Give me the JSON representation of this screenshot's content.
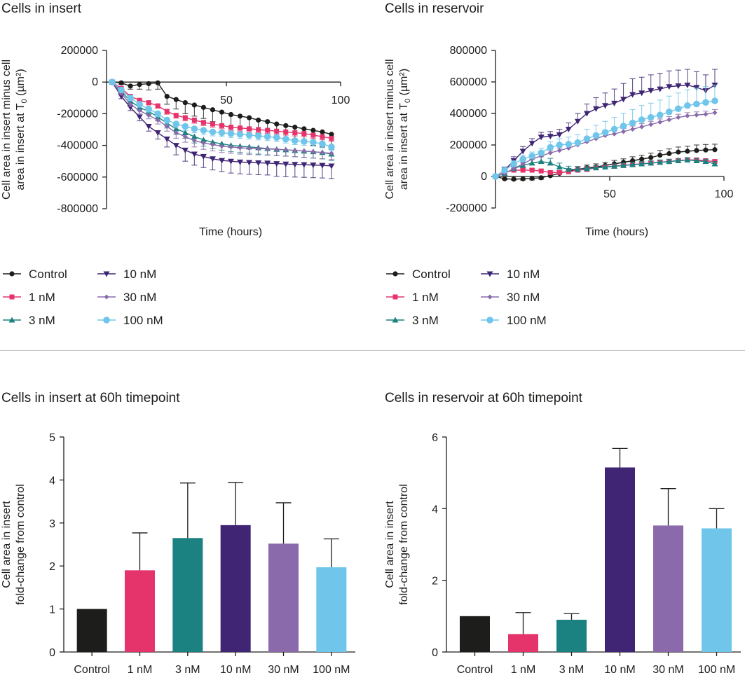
{
  "colors": {
    "Control": "#1d1d1b",
    "1 nM": "#e5336b",
    "3 nM": "#1b8281",
    "10 nM": "#3f2574",
    "30 nM": "#8a6aaa",
    "100 nM": "#6fc6ea",
    "axis": "#1d1d1b",
    "divider": "#c8c8c8"
  },
  "legend": [
    "Control",
    "1 nM",
    "3 nM",
    "10 nM",
    "30 nM",
    "100 nM"
  ],
  "chart_data": [
    {
      "id": "insert-line",
      "type": "line",
      "title": "Cells in insert",
      "xlabel": "Time (hours)",
      "ylabel_lines": [
        "Cell area in insert minus cell",
        "area in insert at T",
        "0",
        " (µm²)"
      ],
      "xlim": [
        0,
        100
      ],
      "ylim": [
        -800000,
        200000
      ],
      "xticks": [
        "50",
        "100"
      ],
      "xtick_values": [
        50,
        100
      ],
      "yticks": [
        "200000",
        "0",
        "-200000",
        "-400000",
        "-600000",
        "-800000"
      ],
      "ytick_values": [
        200000,
        0,
        -200000,
        -400000,
        -600000,
        -800000
      ],
      "x": [
        0,
        4,
        8,
        12,
        16,
        20,
        24,
        28,
        32,
        36,
        40,
        44,
        48,
        52,
        56,
        60,
        64,
        68,
        72,
        76,
        80,
        84,
        88,
        92,
        96
      ],
      "series": [
        {
          "name": "Control",
          "marker": "circle",
          "values": [
            0,
            -5000,
            -25000,
            -15000,
            -10000,
            -5000,
            -90000,
            -110000,
            -130000,
            -145000,
            -160000,
            -175000,
            -190000,
            -205000,
            -215000,
            -225000,
            -240000,
            -250000,
            -265000,
            -275000,
            -285000,
            -295000,
            -305000,
            -315000,
            -330000
          ],
          "errors": [
            0,
            10000,
            20000,
            30000,
            40000,
            40000,
            50000,
            60000,
            70000,
            70000,
            70000,
            75000,
            80000,
            80000,
            80000,
            80000,
            85000,
            85000,
            85000,
            90000,
            90000,
            90000,
            95000,
            95000,
            95000
          ]
        },
        {
          "name": "1 nM",
          "marker": "square",
          "values": [
            0,
            -40000,
            -90000,
            -115000,
            -130000,
            -150000,
            -185000,
            -210000,
            -225000,
            -240000,
            -255000,
            -265000,
            -275000,
            -285000,
            -290000,
            -295000,
            -300000,
            -305000,
            -310000,
            -315000,
            -320000,
            -325000,
            -335000,
            -345000,
            -355000
          ],
          "errors": [
            0,
            10000,
            12000,
            15000,
            15000,
            15000,
            18000,
            18000,
            20000,
            20000,
            20000,
            20000,
            20000,
            20000,
            20000,
            20000,
            20000,
            20000,
            20000,
            20000,
            20000,
            20000,
            20000,
            20000,
            20000
          ]
        },
        {
          "name": "3 nM",
          "marker": "triangle-up",
          "values": [
            0,
            -60000,
            -120000,
            -160000,
            -185000,
            -220000,
            -260000,
            -295000,
            -320000,
            -345000,
            -365000,
            -380000,
            -390000,
            -400000,
            -405000,
            -410000,
            -415000,
            -420000,
            -425000,
            -428000,
            -432000,
            -436000,
            -440000,
            -445000,
            -455000
          ],
          "errors": [
            0,
            12000,
            15000,
            20000,
            20000,
            25000,
            30000,
            35000,
            35000,
            40000,
            40000,
            40000,
            40000,
            40000,
            40000,
            40000,
            40000,
            40000,
            40000,
            40000,
            40000,
            40000,
            40000,
            40000,
            40000
          ]
        },
        {
          "name": "10 nM",
          "marker": "triangle-down",
          "values": [
            0,
            -90000,
            -160000,
            -220000,
            -280000,
            -320000,
            -360000,
            -400000,
            -430000,
            -455000,
            -470000,
            -485000,
            -495000,
            -500000,
            -505000,
            -508000,
            -510000,
            -512000,
            -515000,
            -518000,
            -520000,
            -522000,
            -524000,
            -526000,
            -530000
          ],
          "errors": [
            0,
            15000,
            20000,
            25000,
            30000,
            40000,
            50000,
            60000,
            70000,
            70000,
            70000,
            70000,
            70000,
            75000,
            75000,
            75000,
            75000,
            75000,
            80000,
            80000,
            80000,
            80000,
            80000,
            80000,
            80000
          ]
        },
        {
          "name": "30 nM",
          "marker": "diamond",
          "values": [
            0,
            -70000,
            -140000,
            -180000,
            -210000,
            -240000,
            -280000,
            -320000,
            -345000,
            -370000,
            -385000,
            -395000,
            -405000,
            -410000,
            -415000,
            -418000,
            -420000,
            -422000,
            -425000,
            -428000,
            -432000,
            -436000,
            -440000,
            -445000,
            -450000
          ],
          "errors": [
            0,
            12000,
            15000,
            20000,
            22000,
            25000,
            30000,
            35000,
            35000,
            40000,
            40000,
            40000,
            40000,
            40000,
            40000,
            40000,
            40000,
            40000,
            40000,
            40000,
            40000,
            40000,
            40000,
            40000,
            40000
          ]
        },
        {
          "name": "100 nM",
          "marker": "circle-lg",
          "values": [
            0,
            -50000,
            -100000,
            -140000,
            -170000,
            -200000,
            -240000,
            -265000,
            -280000,
            -295000,
            -305000,
            -315000,
            -320000,
            -325000,
            -330000,
            -335000,
            -340000,
            -345000,
            -350000,
            -360000,
            -370000,
            -375000,
            -380000,
            -390000,
            -410000
          ],
          "errors": [
            0,
            10000,
            15000,
            15000,
            20000,
            20000,
            25000,
            25000,
            25000,
            25000,
            25000,
            25000,
            25000,
            25000,
            25000,
            25000,
            25000,
            25000,
            25000,
            25000,
            25000,
            25000,
            25000,
            25000,
            25000
          ]
        }
      ]
    },
    {
      "id": "reservoir-line",
      "type": "line",
      "title": "Cells in reservoir",
      "xlabel": "Time (hours)",
      "ylabel_lines": [
        "Cell area in insert minus cell",
        "area in insert at T",
        "0",
        " (µm²)"
      ],
      "xlim": [
        0,
        100
      ],
      "ylim": [
        -200000,
        800000
      ],
      "xticks": [
        "50",
        "100"
      ],
      "xtick_values": [
        50,
        100
      ],
      "yticks": [
        "800000",
        "600000",
        "400000",
        "200000",
        "0",
        "-200000"
      ],
      "ytick_values": [
        800000,
        600000,
        400000,
        200000,
        0,
        -200000
      ],
      "x": [
        0,
        4,
        8,
        12,
        16,
        20,
        24,
        28,
        32,
        36,
        40,
        44,
        48,
        52,
        56,
        60,
        64,
        68,
        72,
        76,
        80,
        84,
        88,
        92,
        96
      ],
      "series": [
        {
          "name": "Control",
          "marker": "circle",
          "values": [
            0,
            -15000,
            -17000,
            -15000,
            -12000,
            -8000,
            5000,
            20000,
            35000,
            45000,
            55000,
            60000,
            70000,
            80000,
            90000,
            100000,
            110000,
            120000,
            135000,
            145000,
            155000,
            160000,
            165000,
            168000,
            170000
          ],
          "errors": [
            0,
            5000,
            6000,
            8000,
            10000,
            10000,
            12000,
            15000,
            15000,
            18000,
            18000,
            20000,
            20000,
            22000,
            22000,
            25000,
            25000,
            28000,
            30000,
            30000,
            32000,
            32000,
            35000,
            35000,
            35000
          ]
        },
        {
          "name": "1 nM",
          "marker": "square",
          "values": [
            0,
            25000,
            40000,
            40000,
            40000,
            35000,
            25000,
            25000,
            30000,
            40000,
            45000,
            55000,
            60000,
            65000,
            70000,
            75000,
            80000,
            85000,
            90000,
            95000,
            100000,
            105000,
            105000,
            100000,
            95000
          ],
          "errors": [
            0,
            10000,
            10000,
            10000,
            10000,
            10000,
            10000,
            10000,
            10000,
            10000,
            10000,
            10000,
            10000,
            10000,
            10000,
            10000,
            10000,
            10000,
            10000,
            10000,
            10000,
            10000,
            10000,
            10000,
            10000
          ]
        },
        {
          "name": "3 nM",
          "marker": "triangle-up",
          "values": [
            0,
            20000,
            50000,
            70000,
            85000,
            95000,
            85000,
            60000,
            45000,
            45000,
            50000,
            55000,
            60000,
            65000,
            70000,
            75000,
            80000,
            85000,
            90000,
            95000,
            100000,
            105000,
            100000,
            95000,
            80000
          ],
          "errors": [
            0,
            10000,
            15000,
            20000,
            25000,
            30000,
            30000,
            25000,
            20000,
            15000,
            15000,
            15000,
            15000,
            15000,
            15000,
            15000,
            15000,
            15000,
            15000,
            15000,
            15000,
            15000,
            15000,
            15000,
            15000
          ]
        },
        {
          "name": "10 nM",
          "marker": "triangle-down",
          "values": [
            0,
            40000,
            100000,
            160000,
            210000,
            250000,
            255000,
            265000,
            300000,
            350000,
            400000,
            430000,
            450000,
            465000,
            490000,
            520000,
            530000,
            545000,
            555000,
            570000,
            575000,
            580000,
            565000,
            545000,
            580000
          ],
          "errors": [
            0,
            20000,
            25000,
            30000,
            30000,
            30000,
            30000,
            35000,
            40000,
            50000,
            60000,
            70000,
            80000,
            90000,
            100000,
            100000,
            100000,
            100000,
            100000,
            100000,
            100000,
            100000,
            100000,
            100000,
            100000
          ]
        },
        {
          "name": "30 nM",
          "marker": "diamond",
          "values": [
            0,
            20000,
            50000,
            80000,
            110000,
            130000,
            150000,
            165000,
            180000,
            200000,
            220000,
            240000,
            260000,
            270000,
            285000,
            300000,
            315000,
            330000,
            345000,
            360000,
            375000,
            385000,
            390000,
            395000,
            405000
          ],
          "errors": [
            0,
            10000,
            10000,
            10000,
            15000,
            15000,
            15000,
            15000,
            15000,
            20000,
            20000,
            20000,
            20000,
            20000,
            20000,
            20000,
            20000,
            20000,
            20000,
            20000,
            20000,
            20000,
            20000,
            20000,
            20000
          ]
        },
        {
          "name": "100 nM",
          "marker": "circle-lg",
          "values": [
            0,
            40000,
            80000,
            110000,
            130000,
            150000,
            185000,
            200000,
            205000,
            215000,
            240000,
            260000,
            280000,
            300000,
            320000,
            340000,
            360000,
            375000,
            390000,
            410000,
            430000,
            450000,
            460000,
            470000,
            480000
          ],
          "errors": [
            0,
            15000,
            20000,
            25000,
            25000,
            30000,
            35000,
            40000,
            45000,
            50000,
            60000,
            65000,
            70000,
            75000,
            80000,
            85000,
            90000,
            90000,
            95000,
            100000,
            100000,
            100000,
            100000,
            100000,
            100000
          ]
        }
      ]
    },
    {
      "id": "insert-bar",
      "type": "bar",
      "title": "Cells in insert at 60h timepoint",
      "ylabel_lines": [
        "Cell area in insert",
        "fold-change from control"
      ],
      "categories": [
        "Control",
        "1 nM",
        "3 nM",
        "10 nM",
        "30 nM",
        "100 nM"
      ],
      "values": [
        1.0,
        1.9,
        2.65,
        2.95,
        2.52,
        1.97
      ],
      "errors": [
        0,
        0.87,
        1.28,
        0.99,
        0.95,
        0.66
      ],
      "ylim": [
        0,
        5
      ],
      "yticks": [
        "0",
        "1",
        "2",
        "3",
        "4",
        "5"
      ],
      "ytick_values": [
        0,
        1,
        2,
        3,
        4,
        5
      ]
    },
    {
      "id": "reservoir-bar",
      "type": "bar",
      "title": "Cells in reservoir at 60h timepoint",
      "ylabel_lines": [
        "Cell area in insert",
        "fold-change from control"
      ],
      "categories": [
        "Control",
        "1 nM",
        "3 nM",
        "10 nM",
        "30 nM",
        "100 nM"
      ],
      "values": [
        1.0,
        0.5,
        0.9,
        5.15,
        3.53,
        3.45
      ],
      "errors": [
        0,
        0.6,
        0.17,
        0.53,
        1.03,
        0.55
      ],
      "ylim": [
        0,
        6
      ],
      "yticks": [
        "0",
        "2",
        "4",
        "6"
      ],
      "ytick_values": [
        0,
        2,
        4,
        6
      ]
    }
  ]
}
